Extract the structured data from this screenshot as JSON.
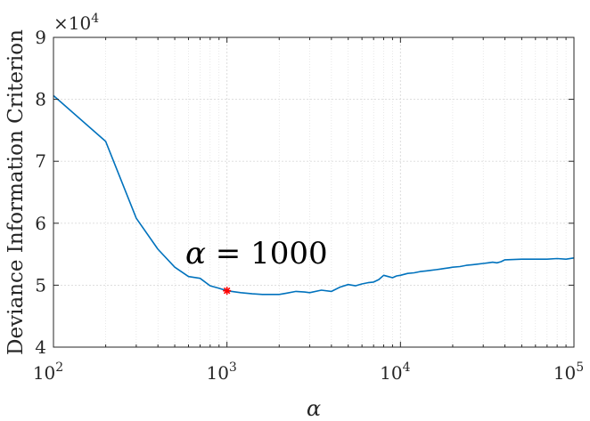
{
  "chart_data": {
    "type": "line",
    "xlabel": "α",
    "ylabel": "Deviance Information Criterion",
    "xscale": "log",
    "xlim": [
      100,
      100000
    ],
    "ylim": [
      40000,
      90000
    ],
    "y_multiplier": "×10^4",
    "grid": true,
    "x_ticks": [
      {
        "base": "10",
        "exp": "2"
      },
      {
        "base": "10",
        "exp": "3"
      },
      {
        "base": "10",
        "exp": "4"
      },
      {
        "base": "10",
        "exp": "5"
      }
    ],
    "y_ticks": [
      "4",
      "5",
      "6",
      "7",
      "8",
      "9"
    ],
    "y_multiplier_text": {
      "base": "×10",
      "exp": "4"
    },
    "series": [
      {
        "color": "#0072BD",
        "x": [
          100,
          200,
          300,
          400,
          500,
          600,
          700,
          800,
          900,
          1000,
          1200,
          1400,
          1600,
          1800,
          2000,
          2200,
          2500,
          2800,
          3000,
          3500,
          4000,
          4500,
          5000,
          5500,
          6000,
          6500,
          7000,
          7500,
          8000,
          8500,
          9000,
          9500,
          10000,
          11000,
          12000,
          13000,
          14000,
          15000,
          16000,
          17000,
          18000,
          19000,
          20000,
          22000,
          24000,
          26000,
          28000,
          30000,
          32000,
          34000,
          36000,
          38000,
          40000,
          50000,
          60000,
          70000,
          80000,
          90000,
          100000
        ],
        "y": [
          80600,
          73200,
          60800,
          55800,
          52900,
          51400,
          51100,
          49900,
          49500,
          49100,
          48800,
          48600,
          48500,
          48500,
          48500,
          48700,
          49000,
          48900,
          48800,
          49200,
          49000,
          49700,
          50100,
          49900,
          50200,
          50400,
          50500,
          50900,
          51600,
          51400,
          51200,
          51500,
          51600,
          51900,
          52000,
          52200,
          52300,
          52400,
          52500,
          52600,
          52700,
          52800,
          52900,
          53000,
          53200,
          53300,
          53400,
          53500,
          53600,
          53700,
          53600,
          53800,
          54100,
          54200,
          54200,
          54200,
          54300,
          54200,
          54400
        ]
      }
    ],
    "highlight": {
      "x": 1000,
      "y": 49100,
      "color": "#FF0000",
      "marker": "asterisk"
    },
    "annotation": {
      "symbol": "α",
      "text": " = 1000",
      "x": 1000,
      "y": 54800
    }
  }
}
